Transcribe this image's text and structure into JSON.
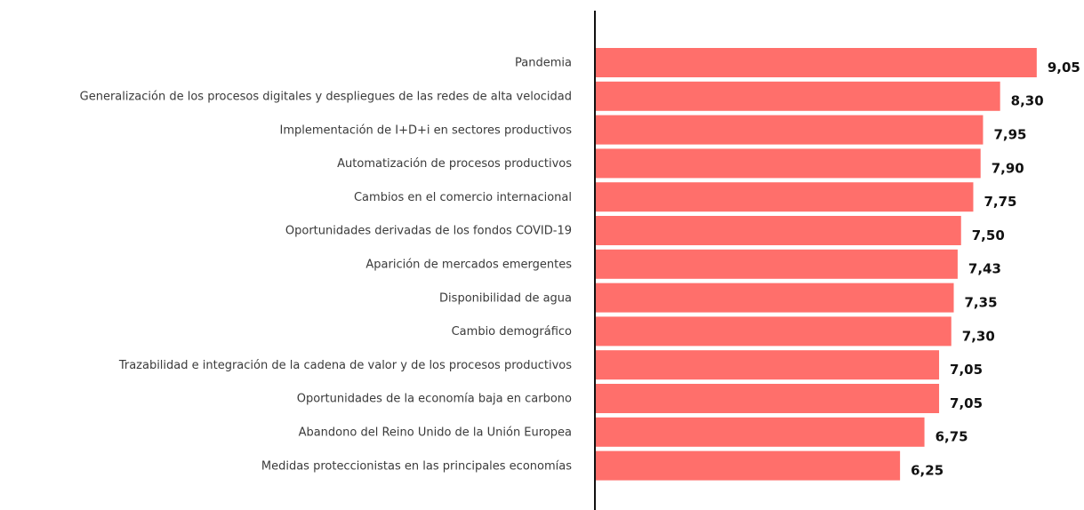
{
  "chart_data": {
    "type": "bar",
    "orientation": "horizontal",
    "categories": [
      "Pandemia",
      "Generalización de los procesos digitales y despliegues de las redes de alta velocidad",
      "Implementación de I+D+i en sectores productivos",
      "Automatización de procesos productivos",
      "Cambios en el comercio internacional",
      "Oportunidades derivadas de los fondos COVID-19",
      "Aparición de mercados emergentes",
      "Disponibilidad de agua",
      "Cambio demográfico",
      "Trazabilidad e integración de la cadena de valor y de los procesos productivos",
      "Oportunidades de la economía baja en carbono",
      "Abandono del Reino Unido de la Unión Europea",
      "Medidas proteccionistas en las principales economías"
    ],
    "values": [
      9.05,
      8.3,
      7.95,
      7.9,
      7.75,
      7.5,
      7.43,
      7.35,
      7.3,
      7.05,
      7.05,
      6.75,
      6.25
    ],
    "value_labels": [
      "9,05",
      "8,30",
      "7,95",
      "7,90",
      "7,75",
      "7,50",
      "7,43",
      "7,35",
      "7,30",
      "7,05",
      "7,05",
      "6,75",
      "6,25"
    ],
    "color": "#ff6f6b",
    "xlim": [
      0,
      10
    ]
  }
}
